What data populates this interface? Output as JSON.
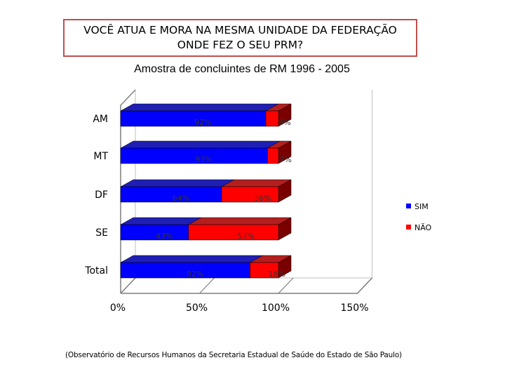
{
  "header": {
    "title": "VOCÊ ATUA E MORA NA MESMA UNIDADE DA FEDERAÇÃO\nONDE FEZ O SEU PRM?",
    "subtitle": "Amostra de concluintes de RM 1996 - 2005"
  },
  "footer": {
    "source": "(Observatório de Recursos Humanos da Secretaria Estadual de Saúde do Estado de São Paulo)"
  },
  "chart_data": {
    "type": "bar",
    "orientation": "horizontal",
    "stacked": true,
    "three_d": true,
    "categories": [
      "AM",
      "MT",
      "DF",
      "SE",
      "Total"
    ],
    "series": [
      {
        "name": "SIM",
        "values": [
          92,
          93,
          64,
          43,
          82
        ],
        "labels": [
          "92%",
          "93%",
          "64%",
          "43%",
          "82%"
        ],
        "color": "#0000ff"
      },
      {
        "name": "NÃO",
        "values": [
          8,
          7,
          36,
          57,
          18
        ],
        "labels": [
          "8%",
          "7%",
          "36%",
          "57%",
          "18%"
        ],
        "color": "#ff0000"
      }
    ],
    "xlim": [
      0,
      150
    ],
    "xticks": [
      "0%",
      "50%",
      "100%",
      "150%"
    ],
    "legend": "right",
    "grid": false
  }
}
